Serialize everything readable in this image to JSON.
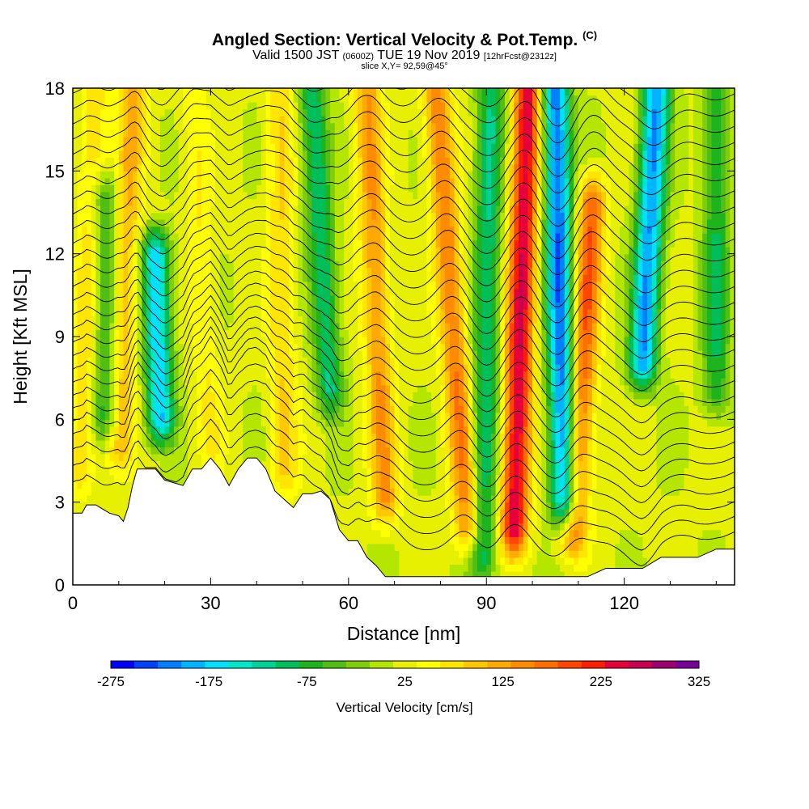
{
  "header": {
    "title": "Angled Section: Vertical Velocity & Pot.Temp.",
    "title_mark": "(C)",
    "valid_prefix": "Valid 1500 JST",
    "valid_utc": "(0600Z)",
    "valid_date": "TUE 19 Nov 2019",
    "forecast": "[12hrFcst@2312z]",
    "slice": "slice X,Y= 92,59@45°"
  },
  "chart_data": {
    "type": "heatmap",
    "xlabel": "Distance [nm]",
    "ylabel": "Height [Kft MSL]",
    "xlim": [
      0,
      144
    ],
    "ylim": [
      0,
      18
    ],
    "x_ticks": [
      0,
      30,
      60,
      90,
      120
    ],
    "y_ticks": [
      0,
      3,
      6,
      9,
      12,
      15,
      18
    ],
    "fill_variable": "Vertical Velocity [cm/s]",
    "contour_variable": "Pot.Temp.",
    "colorbar": {
      "title": "Vertical Velocity [cm/s]",
      "tick_labels": [
        -275,
        -175,
        -75,
        25,
        125,
        225,
        325
      ],
      "levels": [
        -275,
        -250,
        -225,
        -200,
        -175,
        -150,
        -125,
        -100,
        -75,
        -50,
        -25,
        0,
        25,
        50,
        75,
        100,
        125,
        150,
        175,
        200,
        225,
        250,
        275,
        300,
        325
      ],
      "colors": [
        "#0000ff",
        "#0040ff",
        "#0080ff",
        "#00b4ff",
        "#00e0ff",
        "#00e6c8",
        "#00d296",
        "#00be5a",
        "#1eb41e",
        "#50be14",
        "#82cd0a",
        "#b4e600",
        "#e6f000",
        "#ffff00",
        "#ffe600",
        "#ffc800",
        "#ffaa00",
        "#ff8c00",
        "#ff6e00",
        "#ff4600",
        "#ff1e00",
        "#e6003c",
        "#c80050",
        "#a0006e",
        "#780096"
      ]
    },
    "terrain_height_profile": {
      "x": [
        0,
        2,
        3,
        5,
        8,
        10,
        11,
        12,
        13,
        14,
        18,
        20,
        24,
        26,
        28,
        30,
        32,
        34,
        36,
        38,
        40,
        42,
        44,
        46,
        48,
        50,
        52,
        54,
        56,
        58,
        60,
        62,
        64,
        66,
        68,
        70,
        74,
        78,
        82,
        86,
        90,
        96,
        100,
        106,
        112,
        116,
        120,
        124,
        128,
        132,
        136,
        140,
        144
      ],
      "y": [
        2.6,
        2.6,
        2.9,
        2.9,
        2.6,
        2.5,
        2.3,
        2.8,
        3.6,
        4.2,
        4.2,
        3.8,
        3.6,
        4.2,
        4.2,
        4.6,
        4.2,
        3.6,
        4.2,
        4.6,
        4.6,
        4.2,
        3.4,
        3.1,
        2.8,
        3.3,
        3.3,
        3.4,
        3.1,
        2.0,
        1.6,
        1.6,
        1.0,
        0.7,
        0.3,
        0.3,
        0.3,
        0.3,
        0.3,
        0.3,
        0.3,
        0.3,
        0.3,
        0.3,
        0.3,
        0.6,
        0.6,
        0.6,
        1.0,
        1.0,
        1.0,
        1.3,
        1.3
      ]
    },
    "updraft_bands": [
      {
        "x_top": 5,
        "x_bottom": 2,
        "peak_cm_s": 100,
        "top": 18,
        "bottom": 4
      },
      {
        "x_top": 13,
        "x_bottom": 10,
        "peak_cm_s": 125,
        "top": 18,
        "bottom": 5
      },
      {
        "x_top": 26,
        "x_bottom": 30,
        "peak_cm_s": 75,
        "top": 18,
        "bottom": 5
      },
      {
        "x_top": 45,
        "x_bottom": 46,
        "peak_cm_s": 100,
        "top": 18,
        "bottom": 4
      },
      {
        "x_top": 64,
        "x_bottom": 68,
        "peak_cm_s": 150,
        "top": 18,
        "bottom": 3
      },
      {
        "x_top": 79,
        "x_bottom": 86,
        "peak_cm_s": 175,
        "top": 18,
        "bottom": 2
      },
      {
        "x_top": 99,
        "x_bottom": 96,
        "peak_cm_s": 275,
        "top": 18,
        "bottom": 2
      },
      {
        "x_top": 113,
        "x_bottom": 109,
        "peak_cm_s": 200,
        "top": 14,
        "bottom": 2
      }
    ],
    "downdraft_bands": [
      {
        "x_top": 7,
        "x_bottom": 7,
        "peak_cm_s": -75,
        "top": 14,
        "bottom": 6
      },
      {
        "x_top": 18,
        "x_bottom": 19,
        "peak_cm_s": -175,
        "top": 12,
        "bottom": 6
      },
      {
        "x_top": 52,
        "x_bottom": 56,
        "peak_cm_s": -100,
        "top": 18,
        "bottom": 7
      },
      {
        "x_top": 91,
        "x_bottom": 89,
        "peak_cm_s": -100,
        "top": 18,
        "bottom": 1
      },
      {
        "x_top": 105,
        "x_bottom": 107,
        "peak_cm_s": -225,
        "top": 18,
        "bottom": 3
      },
      {
        "x_top": 127,
        "x_bottom": 124,
        "peak_cm_s": -200,
        "top": 18,
        "bottom": 8
      },
      {
        "x_top": 140,
        "x_bottom": 140,
        "peak_cm_s": -75,
        "top": 18,
        "bottom": 7
      }
    ],
    "isentrope_levels_kft": [
      1,
      1.6,
      2.2,
      2.8,
      3.4,
      4.0,
      4.6,
      5.2,
      5.8,
      6.4,
      7.0,
      7.6,
      8.2,
      8.8,
      9.4,
      10.0,
      10.6,
      11.2,
      11.8,
      12.4,
      13.0,
      13.6,
      14.2,
      14.8,
      15.4,
      16.0,
      16.6,
      17.2,
      17.8
    ]
  }
}
